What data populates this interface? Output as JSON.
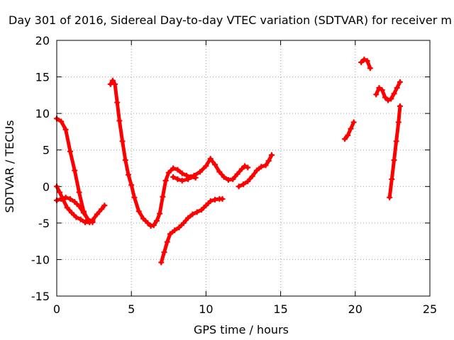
{
  "chart_data": {
    "type": "scatter",
    "title": "Day 301 of 2016, Sidereal Day-to-day VTEC variation (SDTVAR) for receiver m",
    "xlabel": "GPS time / hours",
    "ylabel": "SDTVAR / TECUs",
    "xlim": [
      0,
      25
    ],
    "ylim": [
      -15,
      20
    ],
    "x_ticks": [
      0,
      5,
      10,
      15,
      20,
      25
    ],
    "y_ticks": [
      -15,
      -10,
      -5,
      0,
      5,
      10,
      15,
      20
    ],
    "grid": true,
    "marker": "plus",
    "color": "#ff0000",
    "series": [
      {
        "x": [
          0.0,
          0.3,
          0.6,
          0.9,
          1.2,
          1.5,
          1.8,
          2.1,
          2.4
        ],
        "y": [
          9.3,
          8.9,
          7.8,
          4.8,
          2.2,
          -0.8,
          -3.4,
          -4.6,
          -4.9
        ]
      },
      {
        "x": [
          0.0,
          0.2,
          0.4,
          0.7,
          1.0,
          1.3,
          1.6,
          1.9,
          2.2,
          2.4,
          2.7,
          3.0,
          3.2
        ],
        "y": [
          0.0,
          -0.8,
          -1.7,
          -2.9,
          -3.6,
          -4.2,
          -4.5,
          -4.9,
          -4.9,
          -4.6,
          -3.8,
          -3.1,
          -2.6
        ]
      },
      {
        "x": [
          0.0,
          0.3,
          0.6,
          0.9,
          1.2,
          1.5,
          1.8,
          2.1,
          2.4
        ],
        "y": [
          -1.9,
          -1.7,
          -1.5,
          -1.7,
          -2.1,
          -2.7,
          -3.6,
          -4.5,
          -4.8
        ]
      },
      {
        "x": [
          3.6,
          3.75,
          3.9,
          4.05,
          4.2,
          4.4,
          4.6,
          4.8,
          5.0,
          5.2,
          5.5,
          5.8,
          6.1,
          6.3,
          6.5,
          6.7,
          6.9,
          7.1,
          7.3,
          7.5,
          7.8,
          8.1,
          8.4,
          8.7,
          9.0,
          9.3
        ],
        "y": [
          14.0,
          14.5,
          14.0,
          11.5,
          9.0,
          6.2,
          3.6,
          1.6,
          0.2,
          -1.5,
          -3.4,
          -4.4,
          -5.0,
          -5.4,
          -5.3,
          -4.7,
          -3.7,
          -1.4,
          0.8,
          1.9,
          2.5,
          2.3,
          1.8,
          1.5,
          1.3,
          1.2
        ]
      },
      {
        "x": [
          7.0,
          7.2,
          7.4,
          7.6,
          7.9,
          8.2,
          8.5,
          8.8,
          9.1,
          9.4,
          9.7,
          10.0,
          10.3,
          10.6,
          10.9,
          11.1
        ],
        "y": [
          -10.4,
          -9.0,
          -7.6,
          -6.5,
          -6.0,
          -5.6,
          -5.0,
          -4.3,
          -3.8,
          -3.5,
          -3.2,
          -2.6,
          -2.0,
          -1.8,
          -1.7,
          -1.7
        ]
      },
      {
        "x": [
          7.8,
          8.1,
          8.4,
          8.8,
          9.2,
          9.6,
          10.0,
          10.3,
          10.6,
          10.9,
          11.2,
          11.5,
          11.8,
          12.1,
          12.4,
          12.6,
          12.8
        ],
        "y": [
          1.3,
          1.0,
          0.8,
          1.0,
          1.5,
          2.0,
          2.8,
          3.8,
          3.0,
          2.0,
          1.3,
          0.9,
          1.0,
          1.7,
          2.4,
          2.8,
          2.6
        ]
      },
      {
        "x": [
          12.2,
          12.5,
          12.8,
          13.1,
          13.4,
          13.7,
          14.0,
          14.2,
          14.4
        ],
        "y": [
          0.0,
          0.3,
          0.7,
          1.4,
          2.2,
          2.7,
          2.9,
          3.5,
          4.3
        ]
      },
      {
        "x": [
          19.3,
          19.5,
          19.7,
          19.9
        ],
        "y": [
          6.5,
          7.0,
          7.9,
          8.8
        ]
      },
      {
        "x": [
          20.4,
          20.6,
          20.8,
          21.0
        ],
        "y": [
          17.0,
          17.4,
          17.2,
          16.2
        ]
      },
      {
        "x": [
          21.4,
          21.6,
          21.8,
          22.0,
          22.2,
          22.4,
          22.6,
          22.8,
          23.0
        ],
        "y": [
          12.6,
          13.5,
          13.2,
          12.2,
          11.8,
          12.0,
          12.7,
          13.5,
          14.3
        ]
      },
      {
        "x": [
          22.3,
          22.45,
          22.6,
          22.75,
          22.9,
          23.0
        ],
        "y": [
          -1.5,
          1.0,
          3.6,
          6.2,
          8.8,
          11.0
        ]
      }
    ]
  }
}
